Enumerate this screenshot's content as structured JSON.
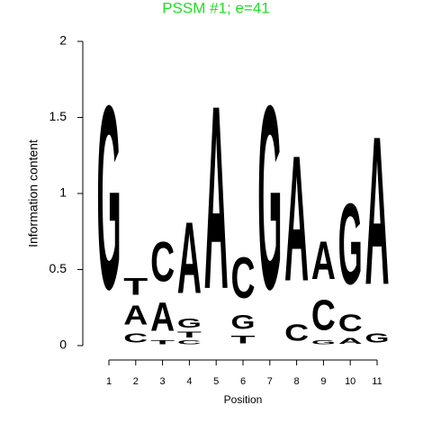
{
  "chart_data": {
    "type": "logo",
    "title": "PSSM #1; e=41",
    "title_color": "#22dd22",
    "xlabel": "Position",
    "ylabel": "Information content",
    "categories": [
      "1",
      "2",
      "3",
      "4",
      "5",
      "6",
      "7",
      "8",
      "9",
      "10",
      "11"
    ],
    "colors": {
      "A": "#22ee22",
      "C": "#0000ee",
      "G": "#ff9900",
      "T": "#ee0000"
    },
    "stacks": [
      [
        {
          "letter": "G",
          "height": 1.93
        }
      ],
      [
        {
          "letter": "C",
          "height": 0.1
        },
        {
          "letter": "A",
          "height": 0.2
        },
        {
          "letter": "T",
          "height": 0.18
        }
      ],
      [
        {
          "letter": "T",
          "height": 0.04
        },
        {
          "letter": "A",
          "height": 0.3
        },
        {
          "letter": "C",
          "height": 0.42
        }
      ],
      [
        {
          "letter": "C",
          "height": 0.04
        },
        {
          "letter": "T",
          "height": 0.06
        },
        {
          "letter": "G",
          "height": 0.1
        },
        {
          "letter": "A",
          "height": 0.75
        }
      ],
      [
        {
          "letter": "A",
          "height": 1.93
        }
      ],
      [
        {
          "letter": "T",
          "height": 0.08
        },
        {
          "letter": "G",
          "height": 0.15
        },
        {
          "letter": "C",
          "height": 0.43
        }
      ],
      [
        {
          "letter": "G",
          "height": 1.93
        }
      ],
      [
        {
          "letter": "C",
          "height": 0.17
        },
        {
          "letter": "A",
          "height": 1.32
        }
      ],
      [
        {
          "letter": "G",
          "height": 0.04
        },
        {
          "letter": "C",
          "height": 0.32
        },
        {
          "letter": "A",
          "height": 0.4
        }
      ],
      [
        {
          "letter": "A",
          "height": 0.06
        },
        {
          "letter": "C",
          "height": 0.18
        },
        {
          "letter": "G",
          "height": 0.85
        }
      ],
      [
        {
          "letter": "G",
          "height": 0.1
        },
        {
          "letter": "A",
          "height": 1.56
        }
      ]
    ],
    "ylim": [
      0,
      2
    ],
    "yticks": [
      0,
      0.5,
      1,
      1.5,
      2
    ]
  }
}
